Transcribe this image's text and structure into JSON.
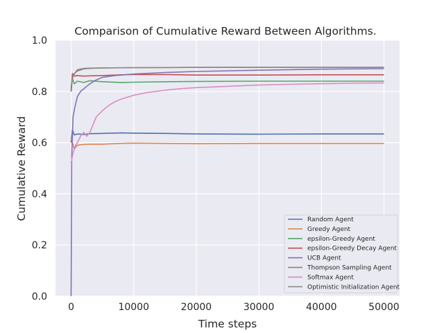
{
  "chart_data": {
    "type": "line",
    "title": "Comparison of Cumulative Reward Between Algorithms.",
    "xlabel": "Time steps",
    "ylabel": "Cumulative Reward",
    "xlim": [
      -2500,
      52500
    ],
    "ylim": [
      0.0,
      1.0
    ],
    "xticks": [
      0,
      10000,
      20000,
      30000,
      40000,
      50000
    ],
    "xtick_labels": [
      "0",
      "10000",
      "20000",
      "30000",
      "40000",
      "50000"
    ],
    "yticks": [
      0.0,
      0.2,
      0.4,
      0.6,
      0.8,
      1.0
    ],
    "ytick_labels": [
      "0.0",
      "0.2",
      "0.4",
      "0.6",
      "0.8",
      "1.0"
    ],
    "grid": true,
    "legend_position": "lower-right",
    "background": "#eaeaf2",
    "series": [
      {
        "name": "Random Agent",
        "color": "#4c72b0",
        "x": [
          0,
          200,
          500,
          1000,
          2000,
          3000,
          5000,
          8000,
          10000,
          15000,
          20000,
          30000,
          40000,
          50000
        ],
        "y": [
          0.6,
          0.65,
          0.63,
          0.634,
          0.632,
          0.635,
          0.636,
          0.638,
          0.637,
          0.636,
          0.634,
          0.633,
          0.634,
          0.634
        ]
      },
      {
        "name": "Greedy Agent",
        "color": "#dd8452",
        "x": [
          0,
          200,
          500,
          1000,
          2000,
          3000,
          5000,
          8000,
          10000,
          15000,
          20000,
          30000,
          40000,
          50000
        ],
        "y": [
          0.62,
          0.6,
          0.575,
          0.59,
          0.593,
          0.594,
          0.594,
          0.597,
          0.598,
          0.597,
          0.596,
          0.597,
          0.597,
          0.597
        ]
      },
      {
        "name": "epsilon-Greedy Agent",
        "color": "#55a868",
        "x": [
          0,
          200,
          500,
          1000,
          2000,
          3000,
          5000,
          8000,
          10000,
          15000,
          20000,
          30000,
          40000,
          50000
        ],
        "y": [
          0.8,
          0.85,
          0.83,
          0.84,
          0.835,
          0.842,
          0.838,
          0.835,
          0.836,
          0.838,
          0.839,
          0.84,
          0.84,
          0.84
        ]
      },
      {
        "name": "epsilon-Greedy Decay Agent",
        "color": "#c44e52",
        "x": [
          0,
          200,
          500,
          1000,
          2000,
          3000,
          5000,
          8000,
          10000,
          15000,
          20000,
          30000,
          40000,
          50000
        ],
        "y": [
          0.8,
          0.87,
          0.86,
          0.862,
          0.86,
          0.861,
          0.862,
          0.865,
          0.866,
          0.866,
          0.864,
          0.864,
          0.865,
          0.865
        ]
      },
      {
        "name": "UCB Agent",
        "color": "#8172b3",
        "x": [
          0,
          100,
          300,
          600,
          1000,
          1500,
          2000,
          3000,
          4000,
          5000,
          7000,
          10000,
          15000,
          20000,
          30000,
          40000,
          50000
        ],
        "y": [
          0.0,
          0.55,
          0.7,
          0.74,
          0.78,
          0.8,
          0.81,
          0.83,
          0.845,
          0.855,
          0.862,
          0.868,
          0.874,
          0.878,
          0.883,
          0.887,
          0.889
        ]
      },
      {
        "name": "Thompson Sampling Agent",
        "color": "#937860",
        "x": [
          0,
          200,
          500,
          1000,
          2000,
          3000,
          5000,
          10000,
          15000,
          20000,
          30000,
          40000,
          50000
        ],
        "y": [
          0.8,
          0.86,
          0.87,
          0.88,
          0.888,
          0.89,
          0.892,
          0.893,
          0.893,
          0.894,
          0.894,
          0.894,
          0.894
        ]
      },
      {
        "name": "Softmax Agent",
        "color": "#da8bc3",
        "x": [
          0,
          300,
          700,
          1000,
          1500,
          2000,
          2500,
          3000,
          3500,
          4000,
          5000,
          6000,
          7000,
          8000,
          10000,
          12000,
          15000,
          18000,
          20000,
          25000,
          30000,
          35000,
          40000,
          45000,
          50000
        ],
        "y": [
          0.52,
          0.56,
          0.59,
          0.6,
          0.625,
          0.64,
          0.625,
          0.64,
          0.67,
          0.7,
          0.725,
          0.745,
          0.76,
          0.77,
          0.785,
          0.795,
          0.805,
          0.812,
          0.815,
          0.82,
          0.825,
          0.828,
          0.83,
          0.832,
          0.833
        ]
      },
      {
        "name": "Optimistic Initialization Agent",
        "color": "#8c8c8c",
        "x": [
          0,
          300,
          700,
          1000,
          2000,
          3000,
          5000,
          10000,
          20000,
          30000,
          40000,
          50000
        ],
        "y": [
          0.82,
          0.86,
          0.875,
          0.885,
          0.89,
          0.891,
          0.892,
          0.893,
          0.894,
          0.894,
          0.894,
          0.894
        ]
      }
    ]
  }
}
